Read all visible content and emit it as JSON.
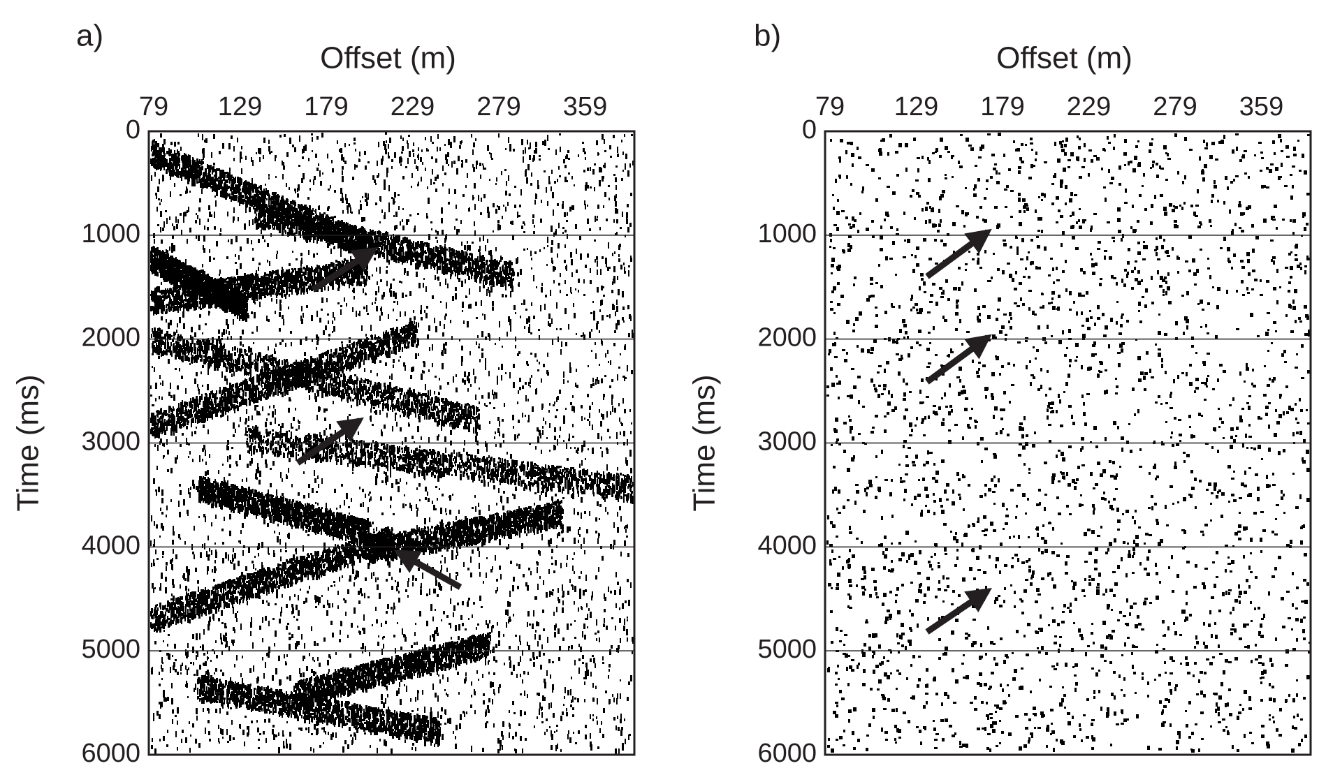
{
  "chart_data": [
    {
      "type": "seismic",
      "title": "a)",
      "xlabel": "Offset (m)",
      "ylabel": "Time (ms)",
      "x_tick_labels": [
        "79",
        "129",
        "179",
        "229",
        "279",
        "359"
      ],
      "ylim": [
        0,
        6000
      ],
      "yticks": [
        0,
        1000,
        2000,
        3000,
        4000,
        5000,
        6000
      ],
      "grid": true,
      "color": "#000000"
    },
    {
      "type": "seismic",
      "title": "b)",
      "xlabel": "Offset (m)",
      "ylabel": "Time (ms)",
      "x_tick_labels": [
        "79",
        "129",
        "179",
        "229",
        "279",
        "359"
      ],
      "ylim": [
        0,
        6000
      ],
      "yticks": [
        0,
        1000,
        2000,
        3000,
        4000,
        5000,
        6000
      ],
      "grid": true,
      "color": "#000000"
    }
  ]
}
